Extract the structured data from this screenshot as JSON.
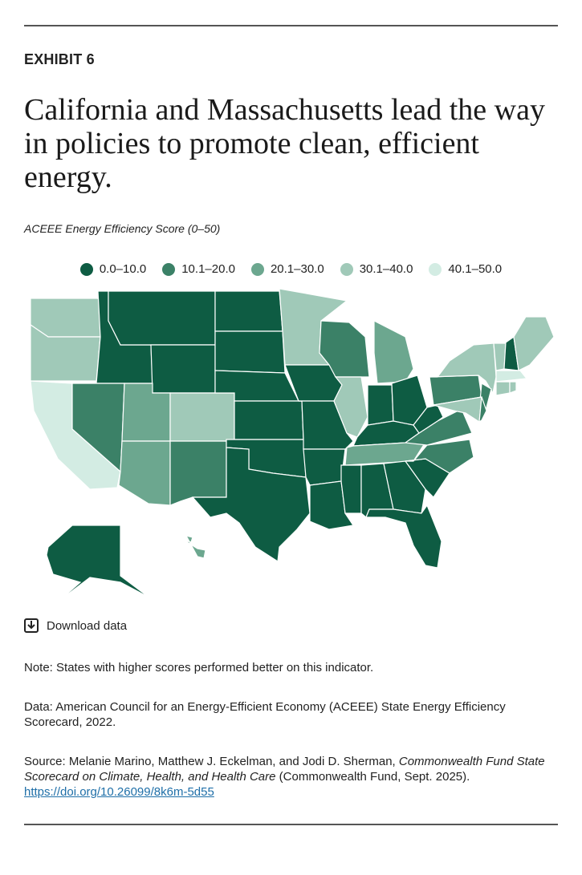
{
  "exhibit": "EXHIBIT 6",
  "title": "California and Massachusetts lead the way in policies to promote clean, efficient energy.",
  "subtitle": "ACEEE Energy Efficiency Score (0–50)",
  "legend": [
    {
      "label": "0.0–10.0",
      "color": "#0e5c43"
    },
    {
      "label": "10.1–20.0",
      "color": "#3b8167"
    },
    {
      "label": "20.1–30.0",
      "color": "#6ca78f"
    },
    {
      "label": "30.1–40.0",
      "color": "#a0c9b8"
    },
    {
      "label": "40.1–50.0",
      "color": "#d3ece3"
    }
  ],
  "regions": {
    "WA": 3,
    "OR": 3,
    "CA": 4,
    "ID": 0,
    "NV": 1,
    "MT": 0,
    "WY": 0,
    "UT": 2,
    "CO": 3,
    "AZ": 2,
    "NM": 1,
    "ND": 0,
    "SD": 0,
    "NE": 0,
    "KS": 0,
    "OK": 0,
    "TX": 0,
    "MN": 3,
    "IA": 0,
    "MO": 0,
    "AR": 0,
    "LA": 0,
    "WI": 1,
    "IL": 3,
    "MI": 2,
    "IN": 0,
    "OH": 0,
    "KY": 0,
    "TN": 2,
    "MS": 0,
    "AL": 0,
    "GA": 0,
    "FL": 0,
    "SC": 0,
    "NC": 1,
    "VA": 1,
    "WV": 0,
    "PA": 1,
    "NY": 3,
    "NJ": 1,
    "MD": 3,
    "DE": 1,
    "VT": 3,
    "NH": 0,
    "ME": 3,
    "MA": 4,
    "CT": 3,
    "RI": 3,
    "AK": 0,
    "HI": 2
  },
  "download": "Download data",
  "note": "Note: States with higher scores performed better on this indicator.",
  "data_note": "Data: American Council for an Energy-Efficient Economy (ACEEE) State Energy Efficiency Scorecard, 2022.",
  "source": {
    "text": "Source: Melanie Marino, Matthew J. Eckelman, and Jodi D. Sherman, ",
    "italic": "Commonwealth Fund State Scorecard on Climate, Health, and Health Care",
    "after": " (Commonwealth Fund, Sept. 2025).",
    "link": "https://doi.org/10.26099/8k6m-5d55"
  }
}
